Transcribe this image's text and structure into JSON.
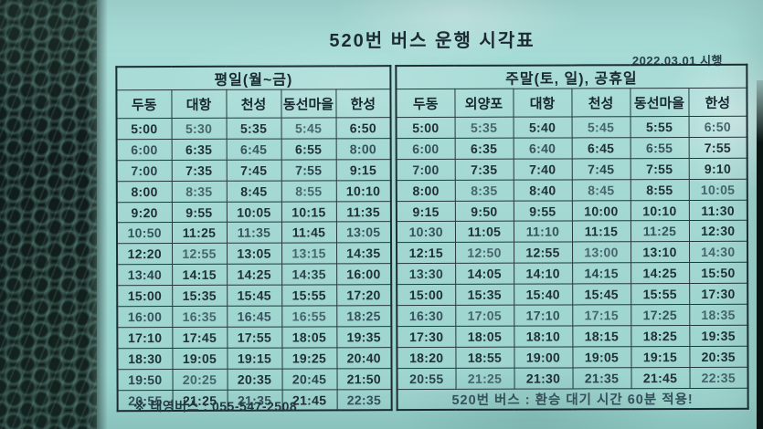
{
  "colors": {
    "paper": "#9fd6d0",
    "ink": "#203038",
    "bubble_wrap": "#0a1412"
  },
  "header": {
    "title": "520번 버스 운행 시각표",
    "effective": "2022.03.01 시행"
  },
  "weekday": {
    "section_title": "평일(월~금)",
    "columns": [
      "두동",
      "대항",
      "천성",
      "동선마을",
      "한성"
    ],
    "rows": [
      [
        "5:00",
        "5:30",
        "5:35",
        "5:45",
        "6:50"
      ],
      [
        "6:00",
        "6:35",
        "6:45",
        "6:55",
        "8:00"
      ],
      [
        "7:00",
        "7:35",
        "7:45",
        "7:55",
        "9:15"
      ],
      [
        "8:00",
        "8:35",
        "8:45",
        "8:55",
        "10:10"
      ],
      [
        "9:20",
        "9:55",
        "10:05",
        "10:15",
        "11:35"
      ],
      [
        "10:50",
        "11:25",
        "11:35",
        "11:45",
        "13:05"
      ],
      [
        "12:20",
        "12:55",
        "13:05",
        "13:15",
        "14:35"
      ],
      [
        "13:40",
        "14:15",
        "14:25",
        "14:35",
        "16:00"
      ],
      [
        "15:00",
        "15:35",
        "15:45",
        "15:55",
        "17:20"
      ],
      [
        "16:00",
        "16:35",
        "16:45",
        "16:55",
        "18:25"
      ],
      [
        "17:10",
        "17:45",
        "17:55",
        "18:05",
        "19:35"
      ],
      [
        "18:30",
        "19:05",
        "19:15",
        "19:25",
        "20:40"
      ],
      [
        "19:50",
        "20:25",
        "20:35",
        "20:45",
        "21:50"
      ],
      [
        "20:55",
        "21:25",
        "21:35",
        "21:45",
        "22:35"
      ]
    ]
  },
  "weekend": {
    "section_title": "주말(토, 일), 공휴일",
    "columns": [
      "두동",
      "외양포",
      "대항",
      "천성",
      "동선마을",
      "한성"
    ],
    "rows": [
      [
        "5:00",
        "5:35",
        "5:40",
        "5:45",
        "5:55",
        "6:50"
      ],
      [
        "6:00",
        "6:35",
        "6:40",
        "6:45",
        "6:55",
        "7:55"
      ],
      [
        "7:00",
        "7:35",
        "7:40",
        "7:45",
        "7:55",
        "9:10"
      ],
      [
        "8:00",
        "8:35",
        "8:40",
        "8:45",
        "8:55",
        "10:05"
      ],
      [
        "9:15",
        "9:50",
        "9:55",
        "10:00",
        "10:10",
        "11:30"
      ],
      [
        "10:30",
        "11:05",
        "11:10",
        "11:15",
        "11:25",
        "12:30"
      ],
      [
        "12:15",
        "12:50",
        "12:55",
        "13:00",
        "13:10",
        "14:30"
      ],
      [
        "13:30",
        "14:05",
        "14:10",
        "14:15",
        "14:25",
        "15:50"
      ],
      [
        "15:00",
        "15:35",
        "15:40",
        "15:45",
        "15:55",
        "17:30"
      ],
      [
        "16:30",
        "17:05",
        "17:10",
        "17:15",
        "17:25",
        "18:35"
      ],
      [
        "17:30",
        "18:05",
        "18:10",
        "18:15",
        "18:25",
        "19:35"
      ],
      [
        "18:20",
        "18:55",
        "19:00",
        "19:05",
        "19:15",
        "20:35"
      ],
      [
        "20:55",
        "21:25",
        "21:30",
        "21:35",
        "21:45",
        "22:35"
      ]
    ],
    "footer_note": "520번 버스 : 환승 대기 시간 60분 적용!"
  },
  "footnote": "※ 태영버스 : 055-547-2508"
}
